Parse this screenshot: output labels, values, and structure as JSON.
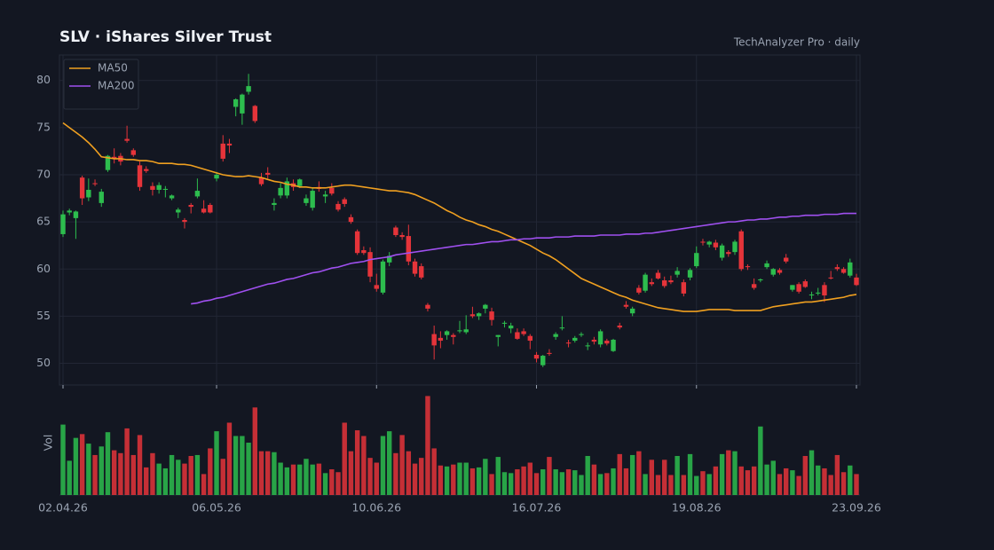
{
  "chart_data": {
    "type": "candlestick",
    "title": "SLV  ·  iShares Silver Trust",
    "subtitle": "TechAnalyzer Pro · daily",
    "categories": [
      "02.04.26",
      null,
      null,
      null,
      null,
      null,
      null,
      null,
      null,
      null,
      null,
      null,
      null,
      null,
      null,
      null,
      null,
      null,
      null,
      null,
      null,
      null,
      null,
      null,
      "06.05.26",
      null,
      null,
      null,
      null,
      null,
      null,
      null,
      null,
      null,
      null,
      null,
      null,
      null,
      null,
      null,
      null,
      null,
      null,
      null,
      null,
      null,
      null,
      null,
      null,
      "10.06.26",
      null,
      null,
      null,
      null,
      null,
      null,
      null,
      null,
      null,
      null,
      null,
      null,
      null,
      null,
      null,
      null,
      null,
      null,
      null,
      null,
      null,
      null,
      null,
      null,
      "16.07.26",
      null,
      null,
      null,
      null,
      null,
      null,
      null,
      null,
      null,
      null,
      null,
      null,
      null,
      null,
      null,
      null,
      null,
      null,
      null,
      null,
      null,
      null,
      null,
      null,
      "19.08.26",
      null,
      null,
      null,
      null,
      null,
      null,
      null,
      null,
      null,
      null,
      null,
      null,
      null,
      null,
      null,
      null,
      null,
      null,
      null,
      null,
      null,
      null,
      null,
      null,
      "23.09.26"
    ],
    "ohlc": [
      [
        63.7,
        66.2,
        63.4,
        65.8
      ],
      [
        66.0,
        66.4,
        65.7,
        66.2
      ],
      [
        65.4,
        66.2,
        63.2,
        66.1
      ],
      [
        69.7,
        69.9,
        66.8,
        67.5
      ],
      [
        67.6,
        69.6,
        67.2,
        68.4
      ],
      [
        69.1,
        69.5,
        68.8,
        69.0
      ],
      [
        67.0,
        68.5,
        66.6,
        68.2
      ],
      [
        70.5,
        72.1,
        70.3,
        72.0
      ],
      [
        71.9,
        72.8,
        71.2,
        71.7
      ],
      [
        72.0,
        72.3,
        71.0,
        71.4
      ],
      [
        73.8,
        75.2,
        73.4,
        73.6
      ],
      [
        72.6,
        72.8,
        71.9,
        72.1
      ],
      [
        71.0,
        71.4,
        68.3,
        68.7
      ],
      [
        70.6,
        70.9,
        70.2,
        70.4
      ],
      [
        68.8,
        69.2,
        67.8,
        68.4
      ],
      [
        68.4,
        69.2,
        68.0,
        68.9
      ],
      [
        68.4,
        68.8,
        67.6,
        68.5
      ],
      [
        67.5,
        67.9,
        67.3,
        67.8
      ],
      [
        66.0,
        66.5,
        65.4,
        66.3
      ],
      [
        65.2,
        65.4,
        64.3,
        65.0
      ],
      [
        66.8,
        67.0,
        65.9,
        66.6
      ],
      [
        67.7,
        69.6,
        67.5,
        68.3
      ],
      [
        66.4,
        67.3,
        65.9,
        66.0
      ],
      [
        66.8,
        67.0,
        65.9,
        66.0
      ],
      [
        69.6,
        70.3,
        69.3,
        70.0
      ],
      [
        73.3,
        74.2,
        71.4,
        71.7
      ],
      [
        73.3,
        73.8,
        72.3,
        73.1
      ],
      [
        77.2,
        78.1,
        76.2,
        78.0
      ],
      [
        76.5,
        78.6,
        75.3,
        78.5
      ],
      [
        78.8,
        80.7,
        78.5,
        79.4
      ],
      [
        77.3,
        77.4,
        75.5,
        75.7
      ],
      [
        69.7,
        70.2,
        68.8,
        69.0
      ],
      [
        70.2,
        70.8,
        69.6,
        70.0
      ],
      [
        66.8,
        67.5,
        66.2,
        67.0
      ],
      [
        67.8,
        69.1,
        67.5,
        68.6
      ],
      [
        67.8,
        69.7,
        67.5,
        69.3
      ],
      [
        69.1,
        69.5,
        68.3,
        68.7
      ],
      [
        68.8,
        69.6,
        68.6,
        69.5
      ],
      [
        67.0,
        67.9,
        66.7,
        67.5
      ],
      [
        66.5,
        68.6,
        66.2,
        68.3
      ],
      [
        68.7,
        69.3,
        68.2,
        68.5
      ],
      [
        67.7,
        68.3,
        67.0,
        67.9
      ],
      [
        68.6,
        69.1,
        67.8,
        68.0
      ],
      [
        66.9,
        67.2,
        66.1,
        66.3
      ],
      [
        67.4,
        67.6,
        66.6,
        66.9
      ],
      [
        65.5,
        65.8,
        64.8,
        65.0
      ],
      [
        64.0,
        64.2,
        61.5,
        61.7
      ],
      [
        62.0,
        62.4,
        61.5,
        61.7
      ],
      [
        61.8,
        62.3,
        58.6,
        59.2
      ],
      [
        58.3,
        59.5,
        57.6,
        57.9
      ],
      [
        57.5,
        61.0,
        57.3,
        60.8
      ],
      [
        60.7,
        61.8,
        60.3,
        61.4
      ],
      [
        64.4,
        64.6,
        63.4,
        63.6
      ],
      [
        63.6,
        63.9,
        63.1,
        63.4
      ],
      [
        63.5,
        64.7,
        60.4,
        60.8
      ],
      [
        60.8,
        61.1,
        59.2,
        59.5
      ],
      [
        60.3,
        60.6,
        58.9,
        59.1
      ],
      [
        56.2,
        56.4,
        55.5,
        55.8
      ],
      [
        53.1,
        54.0,
        50.4,
        51.9
      ],
      [
        52.7,
        53.4,
        51.6,
        52.4
      ],
      [
        53.0,
        53.5,
        52.5,
        53.4
      ],
      [
        53.0,
        53.2,
        52.0,
        52.8
      ],
      [
        53.4,
        54.5,
        53.2,
        53.5
      ],
      [
        53.3,
        55.1,
        53.1,
        53.6
      ],
      [
        55.2,
        56.0,
        54.8,
        55.0
      ],
      [
        55.0,
        55.4,
        54.6,
        55.3
      ],
      [
        55.8,
        56.3,
        55.3,
        56.2
      ],
      [
        55.5,
        55.9,
        54.0,
        54.6
      ],
      [
        52.8,
        53.0,
        51.8,
        53.0
      ],
      [
        54.2,
        54.5,
        53.8,
        54.3
      ],
      [
        53.7,
        54.3,
        53.2,
        54.0
      ],
      [
        53.3,
        53.7,
        52.5,
        52.6
      ],
      [
        53.4,
        53.7,
        52.9,
        53.1
      ],
      [
        52.9,
        53.1,
        51.5,
        52.4
      ],
      [
        50.9,
        51.2,
        50.1,
        50.5
      ],
      [
        49.8,
        50.9,
        49.6,
        50.8
      ],
      [
        51.1,
        51.5,
        50.8,
        51.0
      ],
      [
        52.8,
        53.3,
        52.5,
        53.1
      ],
      [
        53.7,
        55.0,
        53.5,
        53.8
      ],
      [
        52.2,
        52.5,
        51.7,
        52.1
      ],
      [
        52.4,
        52.9,
        52.2,
        52.7
      ],
      [
        53.0,
        53.3,
        52.8,
        53.1
      ],
      [
        51.8,
        52.2,
        51.4,
        51.9
      ],
      [
        52.5,
        52.8,
        52.0,
        52.3
      ],
      [
        52.0,
        53.6,
        51.7,
        53.4
      ],
      [
        52.4,
        52.6,
        51.9,
        52.1
      ],
      [
        51.3,
        52.6,
        51.2,
        52.5
      ],
      [
        54.0,
        54.3,
        53.6,
        53.8
      ],
      [
        56.2,
        56.6,
        55.8,
        56.0
      ],
      [
        55.3,
        56.0,
        55.0,
        55.8
      ],
      [
        58.0,
        58.3,
        57.3,
        57.5
      ],
      [
        57.7,
        59.6,
        57.5,
        59.4
      ],
      [
        58.6,
        59.0,
        58.2,
        58.4
      ],
      [
        59.6,
        59.9,
        58.9,
        59.0
      ],
      [
        58.8,
        59.2,
        58.0,
        58.2
      ],
      [
        58.8,
        59.3,
        58.4,
        58.6
      ],
      [
        59.4,
        60.2,
        59.1,
        59.8
      ],
      [
        58.6,
        58.9,
        57.1,
        57.4
      ],
      [
        59.1,
        60.1,
        58.8,
        59.9
      ],
      [
        60.3,
        62.4,
        60.1,
        61.7
      ],
      [
        62.9,
        63.2,
        62.5,
        62.8
      ],
      [
        62.6,
        63.0,
        62.3,
        62.9
      ],
      [
        62.8,
        63.1,
        62.0,
        62.3
      ],
      [
        61.2,
        62.7,
        60.9,
        62.5
      ],
      [
        61.8,
        62.0,
        61.3,
        61.6
      ],
      [
        61.8,
        63.1,
        61.5,
        62.9
      ],
      [
        64.0,
        64.2,
        59.8,
        60.0
      ],
      [
        60.3,
        60.5,
        59.9,
        60.2
      ],
      [
        58.4,
        59.0,
        57.8,
        58.0
      ],
      [
        58.8,
        59.0,
        58.6,
        58.9
      ],
      [
        60.2,
        60.9,
        60.0,
        60.6
      ],
      [
        59.4,
        60.1,
        59.2,
        60.0
      ],
      [
        59.9,
        60.1,
        59.4,
        59.6
      ],
      [
        61.2,
        61.6,
        60.6,
        60.8
      ],
      [
        57.8,
        58.3,
        57.6,
        58.3
      ],
      [
        58.4,
        58.6,
        57.4,
        57.6
      ],
      [
        58.7,
        58.9,
        58.0,
        58.1
      ],
      [
        57.2,
        57.6,
        56.8,
        57.3
      ],
      [
        57.4,
        58.0,
        57.2,
        57.5
      ],
      [
        58.3,
        58.6,
        56.5,
        57.2
      ],
      [
        59.1,
        59.8,
        58.9,
        59.0
      ],
      [
        60.2,
        60.5,
        59.8,
        60.0
      ],
      [
        60.0,
        60.2,
        59.5,
        59.6
      ],
      [
        59.3,
        61.1,
        59.1,
        60.7
      ],
      [
        59.1,
        59.5,
        58.2,
        58.3
      ]
    ],
    "up_color": "#2dbd4e",
    "down_color": "#e5343a",
    "series": [
      {
        "name": "MA50",
        "color": "#f0a020",
        "values": [
          75.5,
          75.0,
          74.5,
          74.0,
          73.4,
          72.7,
          71.9,
          71.8,
          71.7,
          71.7,
          71.6,
          71.6,
          71.5,
          71.5,
          71.4,
          71.2,
          71.2,
          71.2,
          71.1,
          71.1,
          71.0,
          70.8,
          70.6,
          70.4,
          70.2,
          70.0,
          69.9,
          69.8,
          69.8,
          69.9,
          69.8,
          69.7,
          69.5,
          69.3,
          69.2,
          69.0,
          68.9,
          68.7,
          68.7,
          68.6,
          68.6,
          68.6,
          68.7,
          68.8,
          68.9,
          68.9,
          68.8,
          68.7,
          68.6,
          68.5,
          68.4,
          68.3,
          68.3,
          68.2,
          68.1,
          67.9,
          67.6,
          67.3,
          67.0,
          66.6,
          66.2,
          65.9,
          65.5,
          65.2,
          65.0,
          64.7,
          64.5,
          64.2,
          64.0,
          63.7,
          63.4,
          63.1,
          62.8,
          62.5,
          62.1,
          61.7,
          61.4,
          61.0,
          60.5,
          60.0,
          59.5,
          59.0,
          58.7,
          58.4,
          58.1,
          57.8,
          57.5,
          57.2,
          57.0,
          56.7,
          56.5,
          56.3,
          56.1,
          55.9,
          55.8,
          55.7,
          55.6,
          55.5,
          55.5,
          55.5,
          55.6,
          55.7,
          55.7,
          55.7,
          55.7,
          55.6,
          55.6,
          55.6,
          55.6,
          55.6,
          55.8,
          56.0,
          56.1,
          56.2,
          56.3,
          56.4,
          56.5,
          56.5,
          56.6,
          56.7,
          56.8,
          56.9,
          57.0,
          57.2,
          57.3
        ]
      },
      {
        "name": "MA200",
        "color": "#a050f0",
        "values": [
          null,
          null,
          null,
          null,
          null,
          null,
          null,
          null,
          null,
          null,
          null,
          null,
          null,
          null,
          null,
          null,
          null,
          null,
          null,
          null,
          56.3,
          56.4,
          56.6,
          56.7,
          56.9,
          57.0,
          57.2,
          57.4,
          57.6,
          57.8,
          58.0,
          58.2,
          58.4,
          58.5,
          58.7,
          58.9,
          59.0,
          59.2,
          59.4,
          59.6,
          59.7,
          59.9,
          60.1,
          60.2,
          60.4,
          60.6,
          60.7,
          60.8,
          61.0,
          61.1,
          61.2,
          61.3,
          61.5,
          61.6,
          61.7,
          61.8,
          61.9,
          62.0,
          62.1,
          62.2,
          62.3,
          62.4,
          62.5,
          62.6,
          62.6,
          62.7,
          62.8,
          62.9,
          62.9,
          63.0,
          63.1,
          63.1,
          63.2,
          63.2,
          63.3,
          63.3,
          63.3,
          63.4,
          63.4,
          63.4,
          63.5,
          63.5,
          63.5,
          63.5,
          63.6,
          63.6,
          63.6,
          63.6,
          63.7,
          63.7,
          63.7,
          63.8,
          63.8,
          63.9,
          64.0,
          64.1,
          64.2,
          64.3,
          64.4,
          64.5,
          64.6,
          64.7,
          64.8,
          64.9,
          65.0,
          65.0,
          65.1,
          65.2,
          65.2,
          65.3,
          65.3,
          65.4,
          65.5,
          65.5,
          65.6,
          65.6,
          65.7,
          65.7,
          65.7,
          65.8,
          65.8,
          65.8,
          65.9,
          65.9,
          65.9
        ]
      }
    ],
    "ylim": [
      47.7,
      82.7
    ],
    "yticks": [
      50,
      55,
      60,
      65,
      70,
      75,
      80
    ],
    "grid": true,
    "legend": "upper left",
    "volume": {
      "label": "Vol",
      "ylim": [
        0,
        110
      ],
      "values": [
        74,
        36,
        60,
        64,
        54,
        42,
        51,
        66,
        47,
        44,
        70,
        42,
        63,
        29,
        44,
        33,
        28,
        42,
        37,
        33,
        41,
        42,
        22,
        49,
        67,
        38,
        76,
        62,
        62,
        55,
        92,
        46,
        46,
        45,
        34,
        29,
        32,
        32,
        38,
        32,
        33,
        23,
        27,
        24,
        76,
        46,
        68,
        62,
        39,
        34,
        62,
        67,
        44,
        63,
        46,
        33,
        39,
        104,
        49,
        31,
        30,
        32,
        34,
        34,
        28,
        29,
        38,
        22,
        40,
        24,
        23,
        27,
        30,
        34,
        23,
        27,
        40,
        27,
        24,
        27,
        26,
        21,
        41,
        32,
        22,
        23,
        28,
        43,
        28,
        42,
        46,
        22,
        37,
        21,
        37,
        21,
        41,
        21,
        43,
        20,
        25,
        22,
        30,
        43,
        47,
        46,
        30,
        26,
        30,
        72,
        32,
        36,
        22,
        28,
        26,
        20,
        41,
        47,
        31,
        28,
        21,
        42,
        24,
        31,
        22
      ]
    }
  }
}
